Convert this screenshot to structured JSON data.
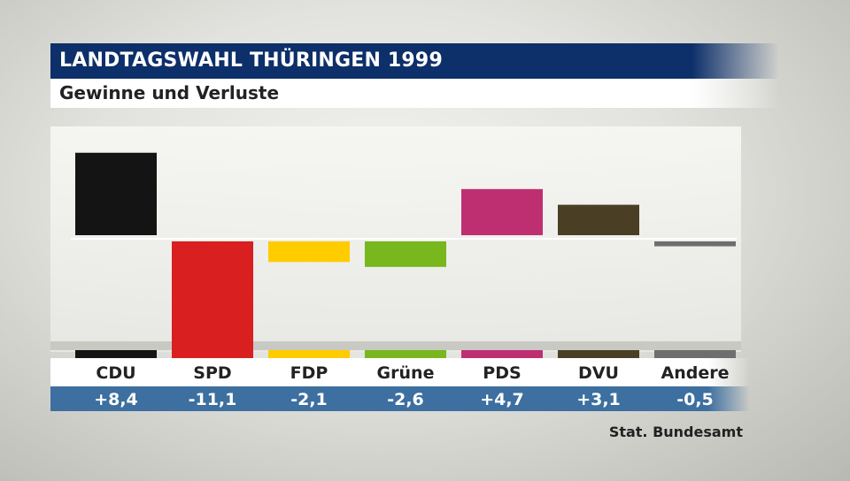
{
  "header": {
    "title": "LANDTAGSWAHL THÜRINGEN 1999",
    "subtitle": "Gewinne und Verluste"
  },
  "source": "Stat. Bundesamt",
  "chart_data": {
    "type": "bar",
    "categories": [
      "CDU",
      "SPD",
      "FDP",
      "Grüne",
      "PDS",
      "DVU",
      "Andere"
    ],
    "values": [
      8.4,
      -11.1,
      -2.1,
      -2.6,
      4.7,
      3.1,
      -0.5
    ],
    "value_labels": [
      "+8,4",
      "-11,1",
      "-2,1",
      "-2,6",
      "+4,7",
      "+3,1",
      "-0,5"
    ],
    "colors": [
      "#141414",
      "#d91f1f",
      "#ffcc00",
      "#78b71d",
      "#be2f72",
      "#4a3f24",
      "#6e6e6e"
    ],
    "title": "LANDTAGSWAHL THÜRINGEN 1999",
    "subtitle": "Gewinne und Verluste",
    "ylim": [
      -11.1,
      8.4
    ],
    "grid": false,
    "baseline": 0
  }
}
